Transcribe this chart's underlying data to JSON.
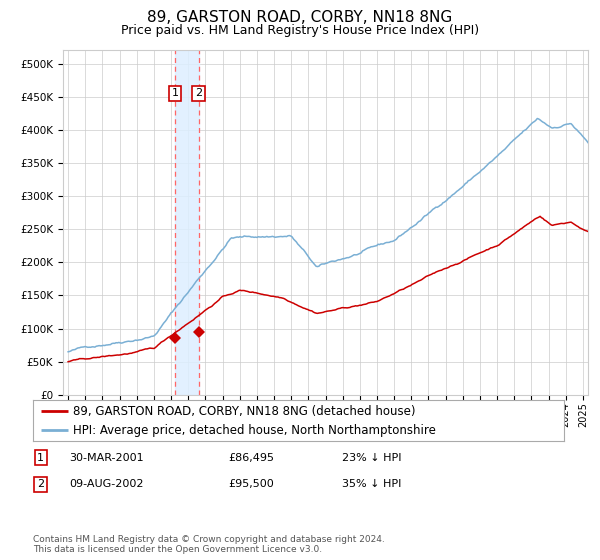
{
  "title": "89, GARSTON ROAD, CORBY, NN18 8NG",
  "subtitle": "Price paid vs. HM Land Registry's House Price Index (HPI)",
  "legend_red": "89, GARSTON ROAD, CORBY, NN18 8NG (detached house)",
  "legend_blue": "HPI: Average price, detached house, North Northamptonshire",
  "transaction1_date": "30-MAR-2001",
  "transaction1_price": "£86,495",
  "transaction1_hpi": "23% ↓ HPI",
  "transaction1_x": 2001.24,
  "transaction1_y": 86495,
  "transaction2_date": "09-AUG-2002",
  "transaction2_price": "£95,500",
  "transaction2_hpi": "35% ↓ HPI",
  "transaction2_x": 2002.61,
  "transaction2_y": 95500,
  "vline1_x": 2001.24,
  "vline2_x": 2002.61,
  "shade_x1": 2001.24,
  "shade_x2": 2002.61,
  "ylabel_ticks": [
    "£0",
    "£50K",
    "£100K",
    "£150K",
    "£200K",
    "£250K",
    "£300K",
    "£350K",
    "£400K",
    "£450K",
    "£500K"
  ],
  "ytick_values": [
    0,
    50000,
    100000,
    150000,
    200000,
    250000,
    300000,
    350000,
    400000,
    450000,
    500000
  ],
  "ylim": [
    0,
    520000
  ],
  "xlim_start": 1994.7,
  "xlim_end": 2025.3,
  "background_color": "#ffffff",
  "grid_color": "#cccccc",
  "red_line_color": "#cc0000",
  "blue_line_color": "#7aafd4",
  "shade_color": "#ddeeff",
  "vline_color": "#ff6666",
  "footnote": "Contains HM Land Registry data © Crown copyright and database right 2024.\nThis data is licensed under the Open Government Licence v3.0.",
  "title_fontsize": 11,
  "subtitle_fontsize": 9,
  "tick_fontsize": 7.5,
  "legend_fontsize": 8.5
}
